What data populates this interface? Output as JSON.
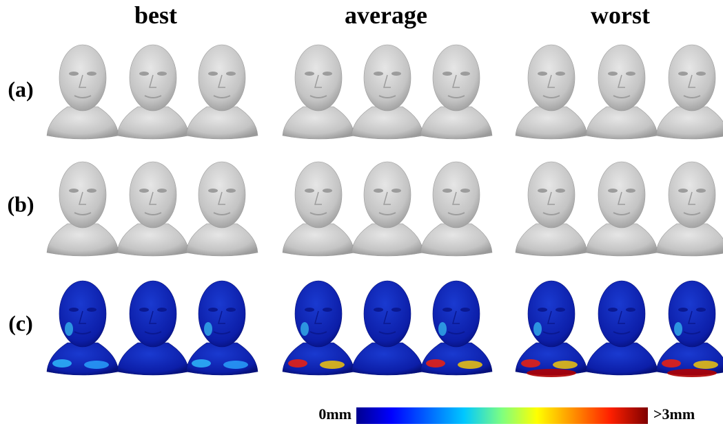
{
  "columns": [
    "best",
    "average",
    "worst"
  ],
  "rows": [
    "(a)",
    "(b)",
    "(c)"
  ],
  "colorbar": {
    "min_label": "0mm",
    "max_label": ">3mm"
  }
}
